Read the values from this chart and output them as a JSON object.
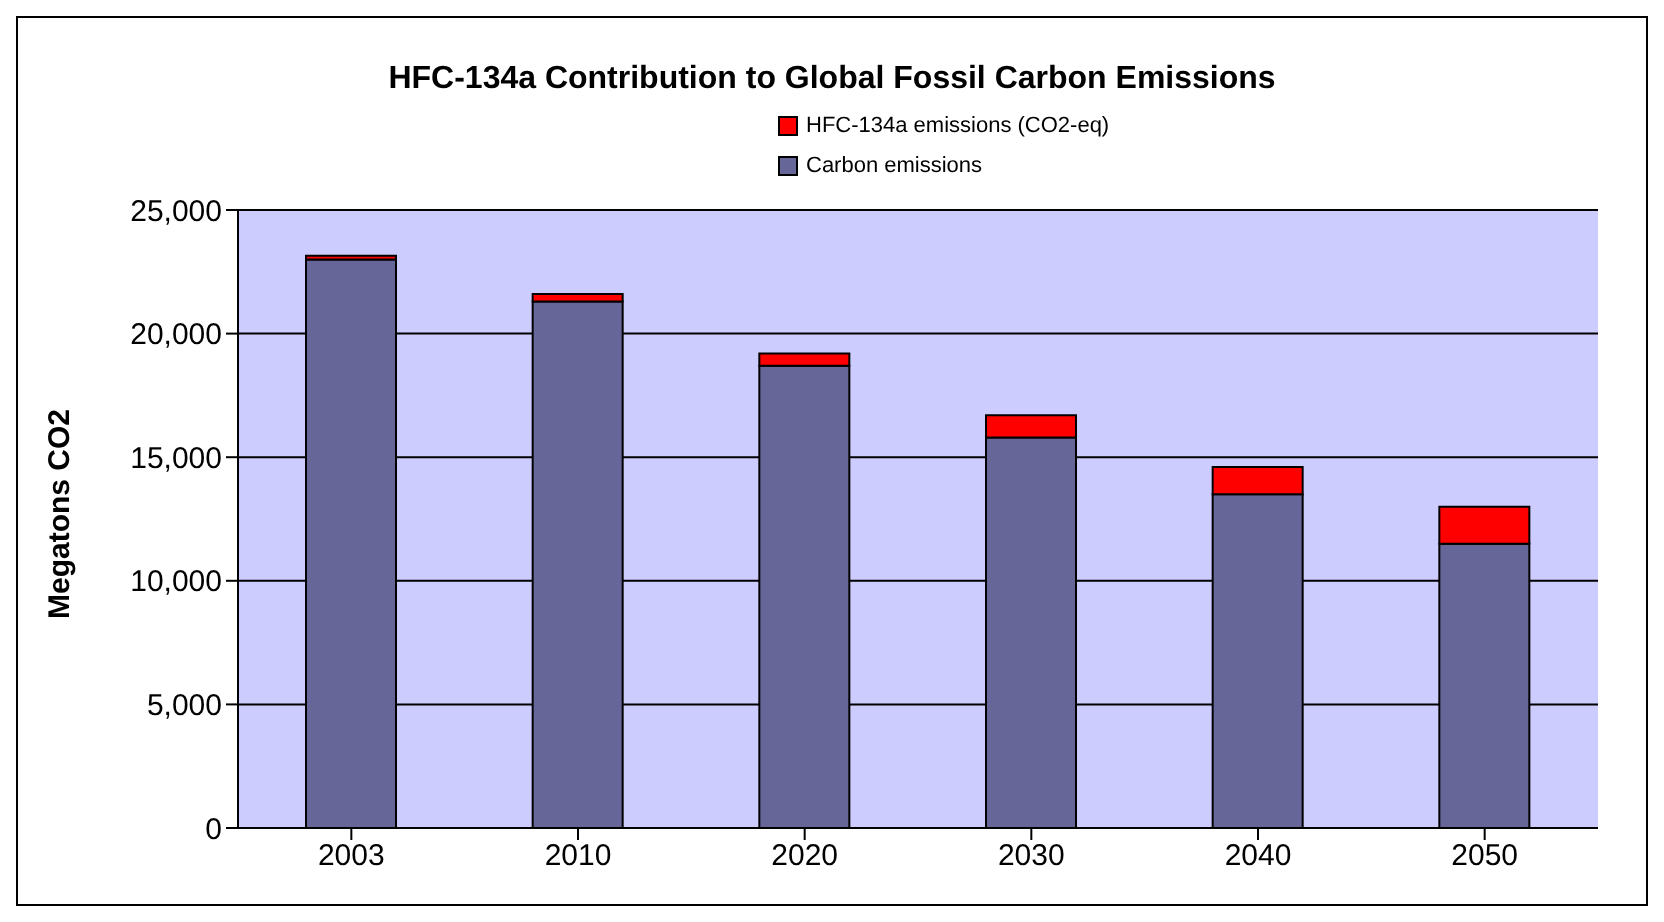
{
  "chart_data": {
    "type": "bar",
    "title": "HFC-134a Contribution to Global Fossil Carbon Emissions",
    "ylabel": "Megatons CO2",
    "categories": [
      "2003",
      "2010",
      "2020",
      "2030",
      "2040",
      "2050"
    ],
    "stacked": true,
    "series": [
      {
        "name": "Carbon emissions",
        "color": "#666699",
        "values": [
          23000,
          21300,
          18700,
          15800,
          13500,
          11500
        ]
      },
      {
        "name": "HFC-134a emissions (CO2-eq)",
        "color": "#ff0000",
        "values": [
          150,
          300,
          500,
          900,
          1100,
          1500
        ]
      }
    ],
    "ylim": [
      0,
      25000
    ],
    "yticks": [
      0,
      {
        "value": 5000,
        "label": "5,000"
      },
      {
        "value": 10000,
        "label": "10,000"
      },
      {
        "value": 15000,
        "label": "15,000"
      },
      {
        "value": 20000,
        "label": "20,000"
      },
      {
        "value": 25000,
        "label": "25,000"
      }
    ],
    "grid": "y",
    "legend": "top"
  }
}
